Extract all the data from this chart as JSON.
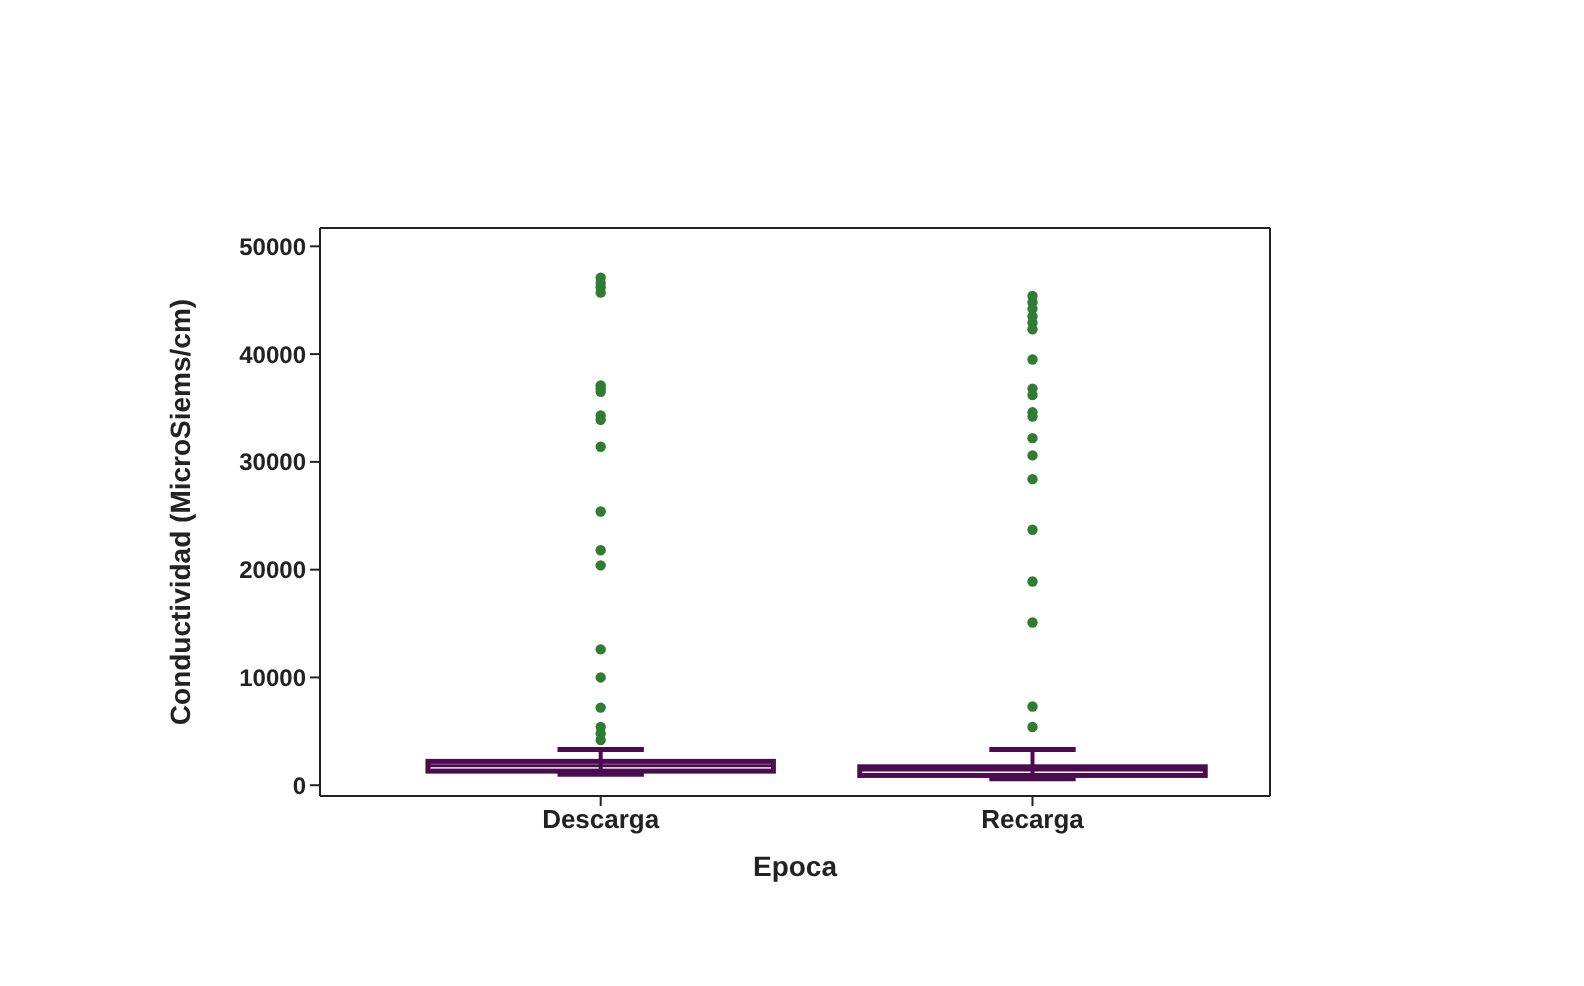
{
  "chart_data": {
    "type": "box",
    "xlabel": "Epoca",
    "ylabel": "Conductividad (MicroSiems/cm)",
    "categories": [
      "Descarga",
      "Recarga"
    ],
    "ylim": [
      -1000,
      51700
    ],
    "yticks": [
      0,
      10000,
      20000,
      30000,
      40000,
      50000
    ],
    "grid": false,
    "series": [
      {
        "color": "#4b0c4f",
        "boxes": [
          {
            "low": 1000,
            "q1": 1300,
            "median": 1800,
            "q3": 2200,
            "high": 3300
          },
          {
            "low": 600,
            "q1": 900,
            "median": 1400,
            "q3": 1700,
            "high": 3300
          }
        ]
      },
      {
        "type": "scatter",
        "color": "#2e7d32",
        "x": [
          "Descarga",
          "Descarga",
          "Descarga",
          "Descarga",
          "Descarga",
          "Descarga",
          "Descarga",
          "Descarga",
          "Descarga",
          "Descarga",
          "Descarga",
          "Descarga",
          "Descarga",
          "Descarga",
          "Descarga",
          "Descarga",
          "Descarga",
          "Descarga",
          "Descarga",
          "Recarga",
          "Recarga",
          "Recarga",
          "Recarga",
          "Recarga",
          "Recarga",
          "Recarga",
          "Recarga",
          "Recarga",
          "Recarga",
          "Recarga",
          "Recarga",
          "Recarga",
          "Recarga",
          "Recarga",
          "Recarga",
          "Recarga",
          "Recarga",
          "Recarga"
        ],
        "values": [
          47100,
          46600,
          46200,
          45700,
          37100,
          36800,
          36500,
          34300,
          33900,
          31400,
          25400,
          21800,
          20400,
          12600,
          10000,
          7200,
          5400,
          4800,
          4200,
          45400,
          44800,
          44200,
          43500,
          42900,
          42300,
          39500,
          36800,
          36200,
          34600,
          34200,
          32200,
          30600,
          28400,
          23700,
          18900,
          15100,
          7300,
          5400
        ]
      }
    ]
  }
}
